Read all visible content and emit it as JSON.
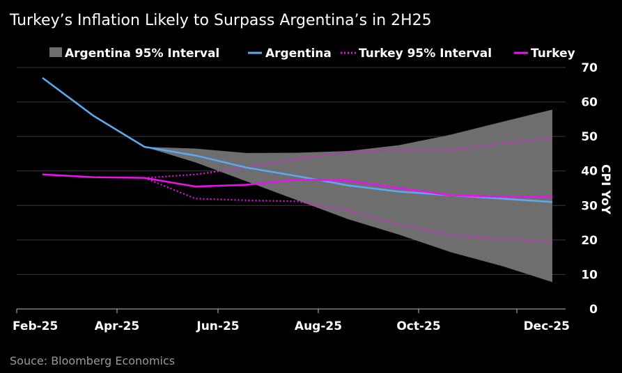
{
  "chart_data": {
    "type": "line",
    "title": "Turkey’s Inflation Likely to Surpass Argentina’s in 2H25",
    "source": "Souce: Bloomberg Economics",
    "ylabel": "CPI YoY",
    "xlabel": "",
    "ylim": [
      0,
      70
    ],
    "yticks": [
      0,
      10,
      20,
      30,
      40,
      50,
      60,
      70
    ],
    "months": [
      "Feb-25",
      "Mar-25",
      "Apr-25",
      "May-25",
      "Jun-25",
      "Jul-25",
      "Aug-25",
      "Sep-25",
      "Oct-25",
      "Nov-25",
      "Dec-25"
    ],
    "xtick_labels": [
      "Feb-25",
      "Apr-25",
      "Jun-25",
      "Aug-25",
      "Oct-25",
      "Dec-25"
    ],
    "xtick_months": [
      "Feb-25",
      "Apr-25",
      "Jun-25",
      "Aug-25",
      "Oct-25",
      "Dec-25"
    ],
    "legend": [
      "Argentina 95%  Interval",
      "Argentina",
      "Turkey 95% Interval",
      "Turkey"
    ],
    "colors": {
      "argentina": "#5aaaf0",
      "argentina_band": "#6e6e6e",
      "turkey": "#ee11ee",
      "grid": "#3a3a3a",
      "axis": "#bbbbbb"
    },
    "series": [
      {
        "name": "Argentina",
        "x": [
          "Feb-25",
          "Mar-25",
          "Apr-25",
          "May-25",
          "Jun-25",
          "Jul-25",
          "Aug-25",
          "Sep-25",
          "Oct-25",
          "Nov-25",
          "Dec-25"
        ],
        "values": [
          67,
          56,
          47,
          44.5,
          41,
          38.5,
          35.8,
          34,
          33,
          32,
          31
        ]
      },
      {
        "name": "Turkey",
        "x": [
          "Feb-25",
          "Mar-25",
          "Apr-25",
          "May-25",
          "Jun-25",
          "Jul-25",
          "Aug-25",
          "Sep-25",
          "Oct-25",
          "Nov-25",
          "Dec-25"
        ],
        "values": [
          39,
          38.2,
          38,
          35.5,
          36,
          37.5,
          37.2,
          35,
          33,
          32.5,
          32.5
        ]
      }
    ],
    "bands": [
      {
        "name": "Argentina 95%  Interval",
        "x": [
          "Apr-25",
          "May-25",
          "Jun-25",
          "Jul-25",
          "Aug-25",
          "Sep-25",
          "Oct-25",
          "Nov-25",
          "Dec-25"
        ],
        "upper": [
          47,
          46.5,
          45.2,
          45.3,
          45.8,
          47.5,
          50.5,
          54.2,
          57.8
        ],
        "lower": [
          47,
          42.5,
          37,
          31.5,
          26,
          21.5,
          16.5,
          12.5,
          7.8
        ]
      }
    ],
    "interval_lines": [
      {
        "name": "Turkey 95% Interval (upper)",
        "x": [
          "Apr-25",
          "May-25",
          "Jun-25",
          "Jul-25",
          "Aug-25",
          "Sep-25",
          "Oct-25",
          "Nov-25",
          "Dec-25"
        ],
        "values": [
          38,
          39,
          41,
          43.5,
          45.5,
          46,
          46,
          48,
          49.5
        ]
      },
      {
        "name": "Turkey 95% Interval (lower)",
        "x": [
          "Apr-25",
          "May-25",
          "Jun-25",
          "Jul-25",
          "Aug-25",
          "Sep-25",
          "Oct-25",
          "Nov-25",
          "Dec-25"
        ],
        "values": [
          38,
          32,
          31.5,
          31.2,
          28.5,
          24.5,
          21.5,
          20.2,
          19.5
        ]
      }
    ]
  }
}
